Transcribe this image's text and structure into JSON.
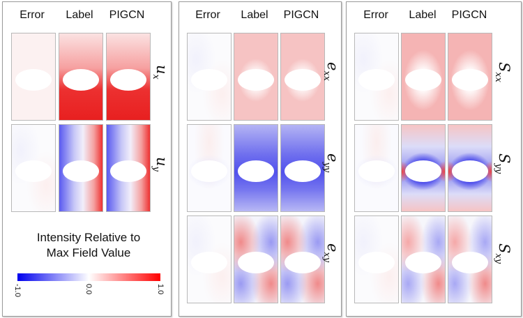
{
  "columns": [
    "Error",
    "Label",
    "PIGCN"
  ],
  "panels": [
    {
      "rows": [
        {
          "sym": "u",
          "sub": "x"
        },
        {
          "sym": "u",
          "sub": "y"
        }
      ]
    },
    {
      "rows": [
        {
          "sym": "e",
          "sub": "xx"
        },
        {
          "sym": "e",
          "sub": "yy"
        },
        {
          "sym": "e",
          "sub": "xy"
        }
      ]
    },
    {
      "rows": [
        {
          "sym": "S",
          "sub": "xx"
        },
        {
          "sym": "S",
          "sub": "yy"
        },
        {
          "sym": "S",
          "sub": "xy"
        }
      ]
    }
  ],
  "legend": {
    "title_line1": "Intensity Relative to",
    "title_line2": "Max Field Value",
    "ticks": [
      "-1.0",
      "0.0",
      "1.0"
    ],
    "colors": {
      "min": "#0000ee",
      "mid": "#ffffff",
      "max": "#ff0000"
    }
  }
}
